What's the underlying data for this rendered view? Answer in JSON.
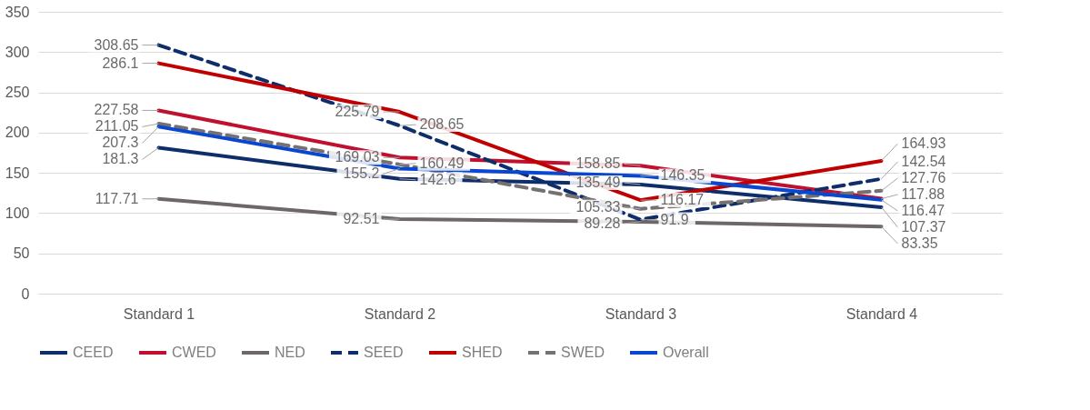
{
  "chart_data": {
    "type": "line",
    "categories": [
      "Standard 1",
      "Standard 2",
      "Standard 3",
      "Standard 4"
    ],
    "series": [
      {
        "name": "CEED",
        "color": "#0e2d6b",
        "line_style": "solid",
        "values": [
          181.3,
          142.6,
          135.49,
          107.37
        ]
      },
      {
        "name": "CWED",
        "color": "#c0102f",
        "line_style": "solid",
        "values": [
          227.58,
          169.03,
          158.85,
          117.88
        ]
      },
      {
        "name": "NED",
        "color": "#6e6767",
        "line_style": "solid",
        "values": [
          117.71,
          92.51,
          89.28,
          83.35
        ]
      },
      {
        "name": "SEED",
        "color": "#0e2d6b",
        "line_style": "dashed",
        "values": [
          308.65,
          208.65,
          91.9,
          142.54
        ]
      },
      {
        "name": "SHED",
        "color": "#c00000",
        "line_style": "solid",
        "values": [
          286.1,
          225.79,
          116.17,
          164.93
        ]
      },
      {
        "name": "SWED",
        "color": "#767171",
        "line_style": "dashed",
        "values": [
          211.05,
          160.49,
          105.33,
          127.76
        ]
      },
      {
        "name": "Overall",
        "color": "#0a47d0",
        "line_style": "solid",
        "values": [
          207.3,
          155.2,
          146.35,
          116.47
        ]
      }
    ],
    "ylim": [
      0,
      350
    ],
    "yticks": [
      0,
      50,
      100,
      150,
      200,
      250,
      300,
      350
    ],
    "grid": "y",
    "legend": "bottom",
    "data_labels": true,
    "marker": "none"
  }
}
